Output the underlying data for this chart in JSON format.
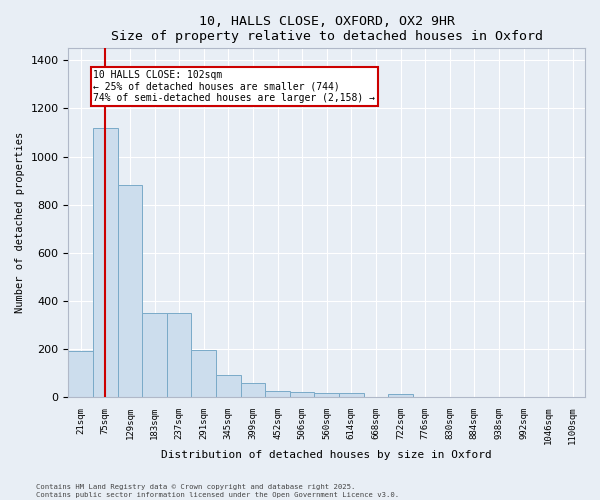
{
  "title": "10, HALLS CLOSE, OXFORD, OX2 9HR",
  "subtitle": "Size of property relative to detached houses in Oxford",
  "xlabel": "Distribution of detached houses by size in Oxford",
  "ylabel": "Number of detached properties",
  "bar_color": "#ccdded",
  "bar_edgecolor": "#7aaac8",
  "categories": [
    "21sqm",
    "75sqm",
    "129sqm",
    "183sqm",
    "237sqm",
    "291sqm",
    "345sqm",
    "399sqm",
    "452sqm",
    "506sqm",
    "560sqm",
    "614sqm",
    "668sqm",
    "722sqm",
    "776sqm",
    "830sqm",
    "884sqm",
    "938sqm",
    "992sqm",
    "1046sqm",
    "1100sqm"
  ],
  "values": [
    193,
    1120,
    880,
    350,
    350,
    195,
    90,
    57,
    25,
    20,
    15,
    15,
    0,
    13,
    0,
    0,
    0,
    0,
    0,
    0,
    0
  ],
  "ylim": [
    0,
    1450
  ],
  "yticks": [
    0,
    200,
    400,
    600,
    800,
    1000,
    1200,
    1400
  ],
  "annotation_line1": "10 HALLS CLOSE: 102sqm",
  "annotation_line2": "← 25% of detached houses are smaller (744)",
  "annotation_line3": "74% of semi-detached houses are larger (2,158) →",
  "annotation_box_color": "#ffffff",
  "annotation_box_edgecolor": "#cc0000",
  "line_color": "#cc0000",
  "footer_line1": "Contains HM Land Registry data © Crown copyright and database right 2025.",
  "footer_line2": "Contains public sector information licensed under the Open Government Licence v3.0.",
  "bg_color": "#e8eef5",
  "grid_color": "#ffffff",
  "spine_color": "#b0b8c8"
}
